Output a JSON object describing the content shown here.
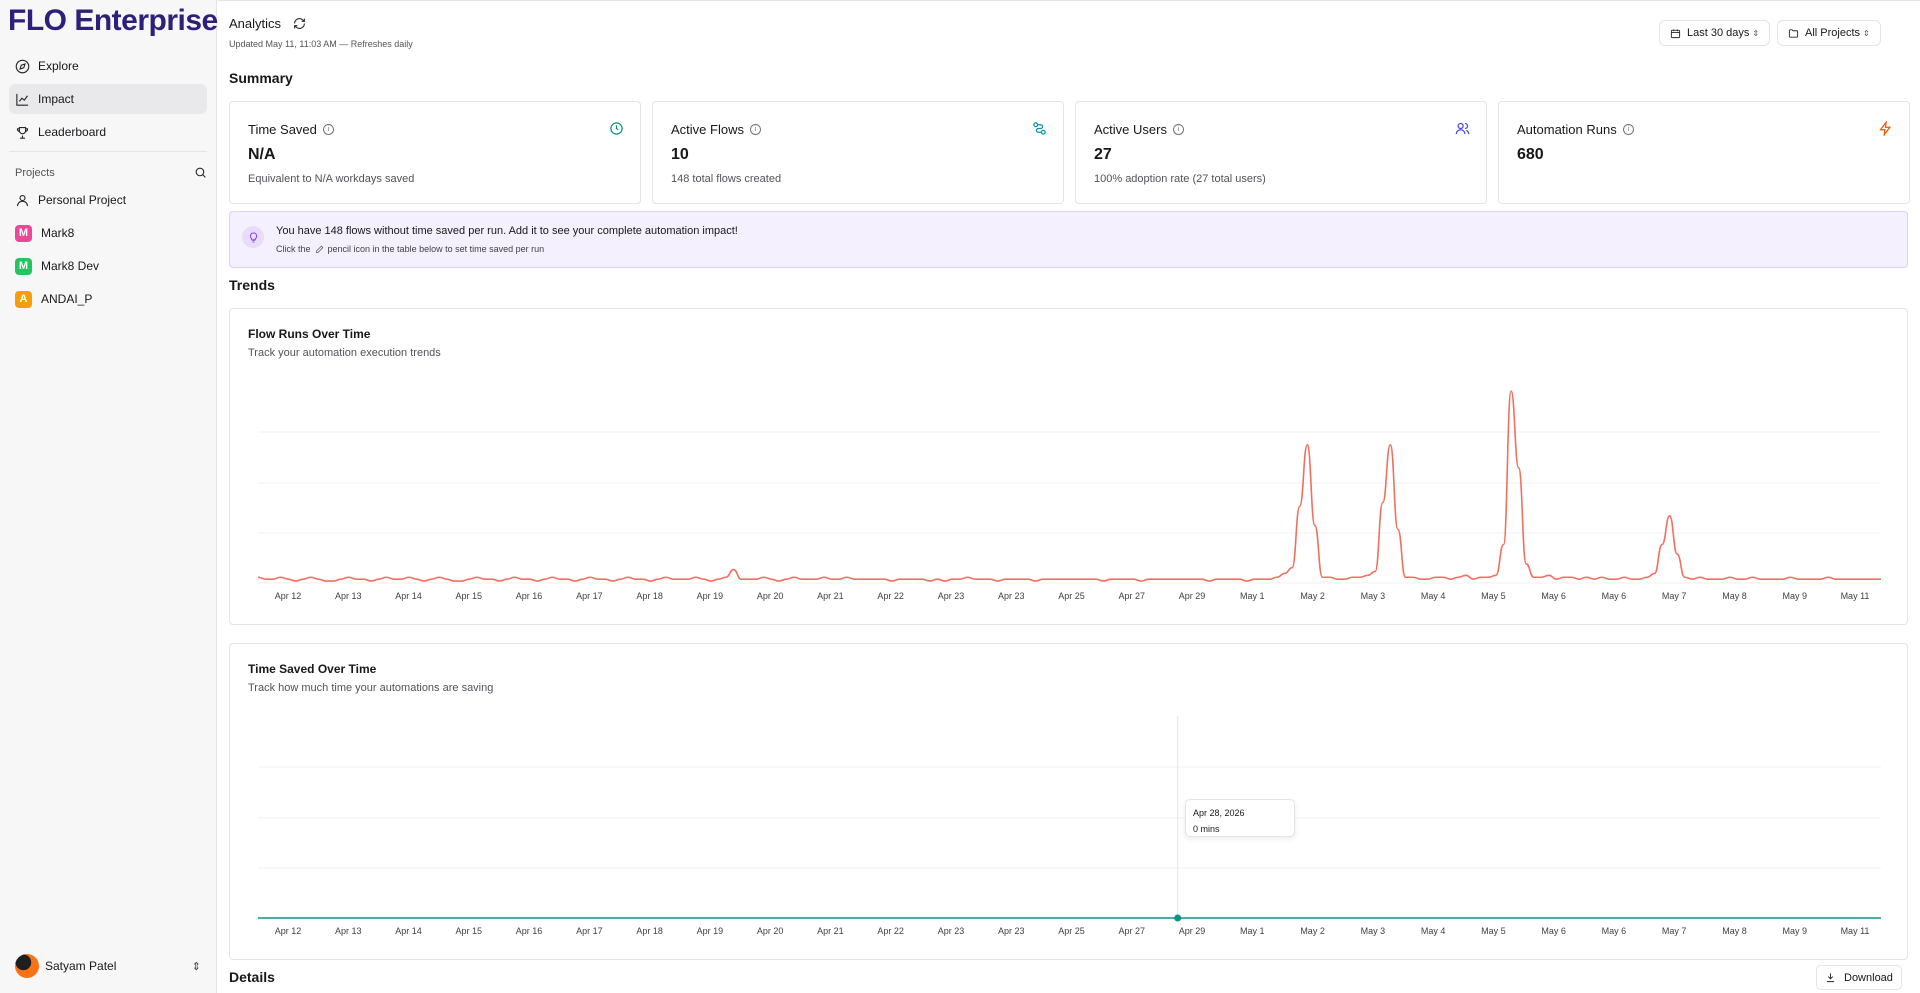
{
  "app": {
    "brand": "FLO Enterprise"
  },
  "sidebar": {
    "nav": [
      {
        "label": "Explore",
        "icon": "compass-icon"
      },
      {
        "label": "Impact",
        "icon": "chart-line-icon",
        "active": true
      },
      {
        "label": "Leaderboard",
        "icon": "trophy-icon"
      }
    ],
    "projects_label": "Projects",
    "projects": [
      {
        "label": "Personal Project",
        "icon": "user-icon"
      },
      {
        "label": "Mark8",
        "badge": "M",
        "color": "#ec4899"
      },
      {
        "label": "Mark8 Dev",
        "badge": "M",
        "color": "#22c55e"
      },
      {
        "label": "ANDAI_P",
        "badge": "A",
        "color": "#f59e0b"
      }
    ],
    "user": {
      "name": "Satyam Patel"
    }
  },
  "header": {
    "title": "Analytics",
    "updated": "Updated May 11, 11:03 AM — Refreshes daily",
    "date_range": "Last 30 days",
    "project_filter": "All Projects"
  },
  "summary": {
    "heading": "Summary",
    "cards": [
      {
        "label": "Time Saved",
        "value": "N/A",
        "sub": "Equivalent to N/A workdays saved",
        "icon": "clock-icon",
        "color": "#0d9488"
      },
      {
        "label": "Active Flows",
        "value": "10",
        "sub": "148 total flows created",
        "icon": "workflow-icon",
        "color": "#0891b2"
      },
      {
        "label": "Active Users",
        "value": "27",
        "sub": "100% adoption rate (27 total users)",
        "icon": "users-icon",
        "color": "#4f46e5"
      },
      {
        "label": "Automation Runs",
        "value": "680",
        "sub": "",
        "icon": "zap-icon",
        "color": "#ea580c"
      }
    ]
  },
  "banner": {
    "message": "You have 148 flows without time saved per run. Add it to see your complete automation impact!",
    "hint_before": "Click the",
    "hint_after": "pencil icon in the table below to set time saved per run"
  },
  "trends": {
    "heading": "Trends",
    "ticks": [
      "Apr 12",
      "Apr 13",
      "Apr 14",
      "Apr 15",
      "Apr 16",
      "Apr 17",
      "Apr 18",
      "Apr 19",
      "Apr 20",
      "Apr 21",
      "Apr 22",
      "Apr 23",
      "Apr 23",
      "Apr 25",
      "Apr 27",
      "Apr 29",
      "May 1",
      "May 2",
      "May 3",
      "May 4",
      "May 5",
      "May 6",
      "May 6",
      "May 7",
      "May 8",
      "May 9",
      "May 11"
    ]
  },
  "chart_data": [
    {
      "type": "line",
      "title": "Flow Runs Over Time",
      "subtitle": "Track your automation execution trends",
      "color": "#f07060",
      "series": [
        {
          "values": [
            3,
            2,
            2,
            3,
            2,
            1,
            2,
            3,
            2,
            1,
            1,
            2,
            3,
            2,
            2,
            1,
            2,
            3,
            2,
            2,
            3,
            2,
            1,
            2,
            3,
            2,
            1,
            1,
            2,
            3,
            2,
            2,
            1,
            2,
            3,
            2,
            2,
            1,
            2,
            3,
            2,
            2,
            1,
            2,
            3,
            2,
            2,
            1,
            2,
            3,
            2,
            2,
            1,
            2,
            3,
            2,
            2,
            2,
            3,
            2,
            1,
            2,
            3,
            7,
            2,
            2,
            2,
            3,
            2,
            1,
            2,
            3,
            2,
            2,
            2,
            3,
            2,
            2,
            3,
            2,
            2,
            2,
            2,
            2,
            1,
            2,
            2,
            2,
            2,
            1,
            2,
            1,
            2,
            2,
            3,
            2,
            2,
            2,
            1,
            2,
            2,
            2,
            2,
            1,
            2,
            2,
            2,
            2,
            2,
            2,
            2,
            2,
            1,
            2,
            2,
            2,
            2,
            1,
            2,
            2,
            2,
            2,
            2,
            2,
            2,
            2,
            1,
            2,
            2,
            2,
            2,
            1,
            2,
            2,
            2,
            3,
            5,
            8,
            40,
            72,
            30,
            3,
            3,
            2,
            2,
            3,
            3,
            4,
            6,
            42,
            72,
            28,
            3,
            3,
            2,
            2,
            3,
            3,
            2,
            3,
            4,
            2,
            3,
            3,
            4,
            20,
            100,
            60,
            10,
            3,
            3,
            4,
            2,
            3,
            3,
            2,
            3,
            2,
            3,
            2,
            2,
            3,
            2,
            2,
            3,
            5,
            20,
            35,
            15,
            3,
            2,
            3,
            2,
            2,
            2,
            3,
            2,
            2,
            3,
            2,
            2,
            2,
            2,
            3,
            2,
            2,
            2,
            2,
            3,
            2,
            2,
            2,
            2,
            2,
            2,
            2
          ]
        }
      ]
    },
    {
      "type": "line",
      "title": "Time Saved Over Time",
      "subtitle": "Track how much time your automations are saving",
      "color": "#0d9488",
      "series": [
        {
          "values": [
            0,
            0,
            0,
            0,
            0,
            0,
            0,
            0,
            0,
            0,
            0,
            0,
            0,
            0,
            0,
            0,
            0,
            0,
            0,
            0,
            0,
            0,
            0,
            0,
            0,
            0,
            0,
            0,
            0,
            0,
            0
          ]
        }
      ],
      "highlight_index": 17,
      "tooltip": {
        "date": "Apr 28, 2026",
        "value": "0 mins"
      }
    }
  ],
  "details": {
    "heading": "Details",
    "download": "Download"
  }
}
